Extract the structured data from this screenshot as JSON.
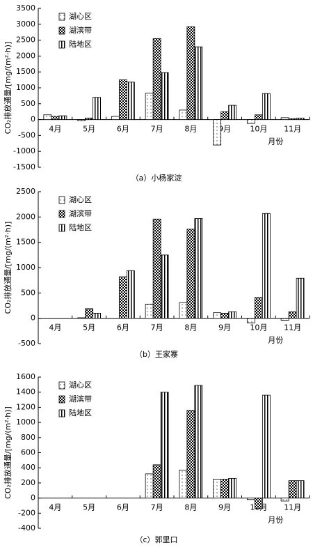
{
  "chart_data": [
    {
      "type": "bar",
      "caption": "（a）小杨家淀",
      "y_label": "CO₂排放通量/[mg/(m²·h)]",
      "x_label": "月份",
      "categories": [
        "4月",
        "5月",
        "6月",
        "7月",
        "8月",
        "9月",
        "10月",
        "11月"
      ],
      "series": [
        {
          "name": "湖心区",
          "values": [
            150,
            -30,
            100,
            830,
            300,
            -800,
            -120,
            60
          ]
        },
        {
          "name": "湖滨带",
          "values": [
            100,
            50,
            1250,
            2550,
            2920,
            250,
            150,
            30
          ]
        },
        {
          "name": "陆地区",
          "values": [
            120,
            700,
            1180,
            1480,
            2290,
            450,
            820,
            50
          ]
        }
      ],
      "ylim": [
        -1500,
        3500
      ],
      "yticks": [
        -1500,
        -1000,
        -500,
        0,
        500,
        1000,
        1500,
        2000,
        2500,
        3000,
        3500
      ]
    },
    {
      "type": "bar",
      "caption": "（b）王家寨",
      "y_label": "CO₂排放通量/[mg/(m²·h)]",
      "x_label": "月份",
      "categories": [
        "4月",
        "5月",
        "6月",
        "7月",
        "8月",
        "9月",
        "10月",
        "11月"
      ],
      "series": [
        {
          "name": "湖心区",
          "values": [
            null,
            10,
            null,
            280,
            310,
            110,
            -90,
            -40
          ]
        },
        {
          "name": "湖滨带",
          "values": [
            null,
            190,
            820,
            1960,
            1760,
            100,
            410,
            130
          ]
        },
        {
          "name": "陆地区",
          "values": [
            null,
            100,
            940,
            1250,
            1970,
            130,
            2070,
            790
          ]
        }
      ],
      "ylim": [
        -500,
        2500
      ],
      "yticks": [
        -500,
        0,
        500,
        1000,
        1500,
        2000,
        2500
      ]
    },
    {
      "type": "bar",
      "caption": "（c）郭里口",
      "y_label": "CO₂排放通量/[mg/(m²·h)]",
      "x_label": "月份",
      "categories": [
        "4月",
        "5月",
        "6月",
        "7月",
        "8月",
        "9月",
        "10月",
        "11月"
      ],
      "series": [
        {
          "name": "湖心区",
          "values": [
            null,
            null,
            null,
            320,
            370,
            250,
            -20,
            -40
          ]
        },
        {
          "name": "湖滨带",
          "values": [
            null,
            null,
            null,
            440,
            1160,
            250,
            -140,
            230
          ]
        },
        {
          "name": "陆地区",
          "values": [
            null,
            null,
            null,
            1400,
            1490,
            260,
            1360,
            230
          ]
        }
      ],
      "ylim": [
        -400,
        1600
      ],
      "yticks": [
        -400,
        -200,
        0,
        200,
        400,
        600,
        800,
        1000,
        1200,
        1400,
        1600
      ]
    }
  ]
}
